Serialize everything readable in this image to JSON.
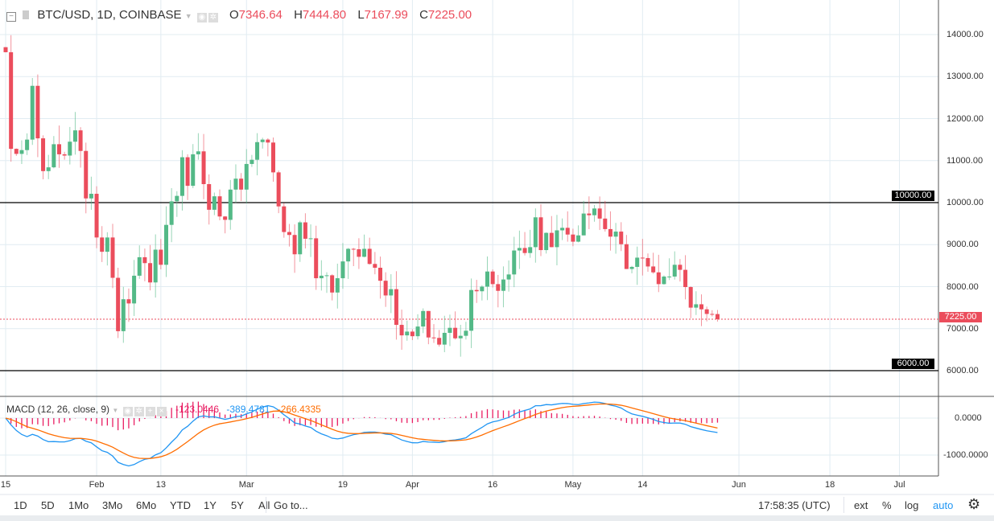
{
  "header": {
    "symbol": "BTC/USD, 1D, COINBASE",
    "o_label": "O",
    "o": "7346.64",
    "h_label": "H",
    "h": "7444.80",
    "l_label": "L",
    "l": "7167.99",
    "c_label": "C",
    "c": "7225.00"
  },
  "price_axis": [
    "14000.00",
    "13000.00",
    "12000.00",
    "11000.00",
    "10000.00",
    "9000.00",
    "8000.00",
    "7000.00",
    "6000.00"
  ],
  "price_ticks": [
    14000,
    13000,
    12000,
    11000,
    10000,
    9000,
    8000,
    7000,
    6000
  ],
  "horizontal_lines": [
    {
      "price": 10000,
      "label": "10000.00"
    },
    {
      "price": 6000,
      "label": "6000.00"
    }
  ],
  "last_price": {
    "price": 7225,
    "label": "7225.00"
  },
  "time_axis": [
    {
      "label": "15",
      "day": 0
    },
    {
      "label": "Feb",
      "day": 17
    },
    {
      "label": "13",
      "day": 29
    },
    {
      "label": "Mar",
      "day": 45
    },
    {
      "label": "19",
      "day": 63
    },
    {
      "label": "Apr",
      "day": 76
    },
    {
      "label": "16",
      "day": 91
    },
    {
      "label": "May",
      "day": 106
    },
    {
      "label": "14",
      "day": 119
    },
    {
      "label": "Jun",
      "day": 137
    },
    {
      "label": "18",
      "day": 154
    },
    {
      "label": "Jul",
      "day": 167
    }
  ],
  "colors": {
    "up": "#53b987",
    "down": "#eb4d5c",
    "macd": "#2196f3",
    "signal": "#ff6d00",
    "hist": "#e91e63",
    "grid": "#e1ecf2"
  },
  "chart_data": {
    "type": "candlestick",
    "start": "Jan 15",
    "interval": "1D",
    "closes": [
      13580,
      11280,
      11160,
      11250,
      11500,
      12780,
      11530,
      10750,
      10840,
      11390,
      11150,
      11120,
      11450,
      11720,
      11230,
      10100,
      10210,
      9170,
      8830,
      9170,
      8210,
      6940,
      7700,
      7600,
      8260,
      8700,
      8560,
      8100,
      8880,
      8520,
      9470,
      10030,
      10160,
      11080,
      10400,
      11150,
      11220,
      10440,
      9830,
      10150,
      9670,
      9590,
      10310,
      10570,
      10310,
      10920,
      11020,
      11440,
      11500,
      11430,
      10720,
      9910,
      9300,
      9230,
      8770,
      9530,
      9140,
      9150,
      8200,
      8260,
      8270,
      7860,
      8200,
      8600,
      8900,
      8890,
      8710,
      8900,
      8540,
      8450,
      8140,
      7790,
      7940,
      7090,
      6840,
      6930,
      6820,
      7050,
      7420,
      6790,
      6780,
      6620,
      6900,
      7020,
      6770,
      6830,
      6950,
      7920,
      7890,
      8000,
      8360,
      8060,
      7900,
      8170,
      8290,
      8860,
      8920,
      8800,
      8940,
      9650,
      8870,
      9280,
      8940,
      9340,
      9400,
      9240,
      9070,
      9220,
      9740,
      9700,
      9860,
      9620,
      9370,
      9190,
      9310,
      9010,
      8420,
      8470,
      8690,
      8680,
      8480,
      8340,
      8060,
      8240,
      8240,
      8520,
      8400,
      7990,
      7500,
      7580,
      7460,
      7350,
      7346.64,
      7225
    ],
    "first_open": 13700,
    "last": {
      "open": 7346.64,
      "high": 7444.8,
      "low": 7167.99,
      "close": 7225
    }
  },
  "macd": {
    "title": "MACD (12, 26, close, 9)",
    "hist": "-123.0446",
    "macd": "-389.4781",
    "signal": "-266.4335",
    "axis": [
      "0.0000",
      "-1000.0000"
    ]
  },
  "toolbar": {
    "ranges": [
      "1D",
      "5D",
      "1Mo",
      "3Mo",
      "6Mo",
      "YTD",
      "1Y",
      "5Y",
      "All"
    ],
    "goto": "Go to...",
    "time": "17:58:35 (UTC)",
    "ext": "ext",
    "pct": "%",
    "log": "log",
    "auto": "auto"
  }
}
